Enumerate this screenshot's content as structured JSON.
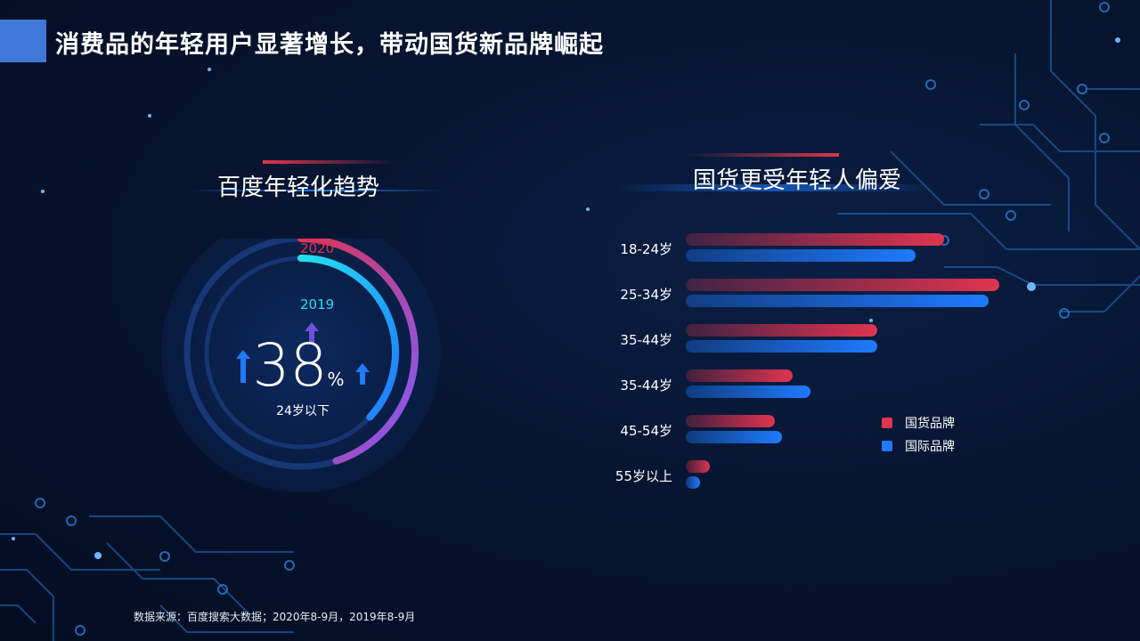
{
  "page_title": "消费品的年轻用户显著增长，带动国货新品牌崛起",
  "left_section": {
    "title": "百度年轻化趋势",
    "label_2020": "2020",
    "label_2019": "2019",
    "value": "38",
    "unit": "%",
    "note": "24岁以下"
  },
  "right_section": {
    "title": "国货更受年轻人偏爱"
  },
  "colors": {
    "domestic": "#e0344f",
    "international": "#1f7aff",
    "accent_title": "#3f78d8"
  },
  "chart_data": [
    {
      "type": "gauge",
      "title": "百度年轻化趋势",
      "value_percent": 38,
      "series": [
        {
          "name": "2020",
          "fraction": 0.45
        },
        {
          "name": "2019",
          "fraction": 0.37
        }
      ]
    },
    {
      "type": "bar",
      "orientation": "horizontal",
      "title": "国货更受年轻人偏爱",
      "categories": [
        "18-24岁",
        "25-34岁",
        "35-44岁",
        "35-44岁",
        "45-54岁",
        "55岁以上"
      ],
      "series": [
        {
          "name": "国货品牌",
          "values": [
            290,
            352,
            215,
            120,
            100,
            27
          ]
        },
        {
          "name": "国际品牌",
          "values": [
            258,
            340,
            215,
            140,
            108,
            16
          ]
        }
      ],
      "legend_position": "right"
    }
  ],
  "source": "数据来源：百度搜索大数据；2020年8-9月，2019年8-9月"
}
